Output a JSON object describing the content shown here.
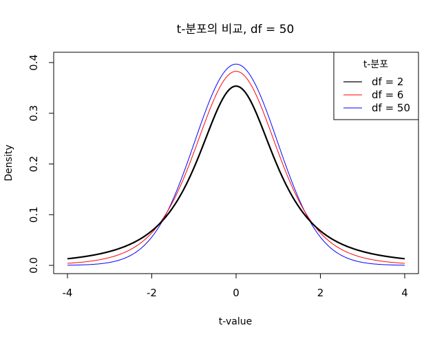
{
  "chart_data": {
    "type": "line",
    "title": "t-분포의 비교, df = 50",
    "xlabel": "t-value",
    "ylabel": "Density",
    "xlim": [
      -4,
      4
    ],
    "ylim": [
      0,
      0.4
    ],
    "x_ticks": [
      -4,
      -2,
      0,
      2,
      4
    ],
    "x_tick_labels": [
      "-4",
      "-2",
      "0",
      "2",
      "4"
    ],
    "y_ticks": [
      0.0,
      0.1,
      0.2,
      0.3,
      0.4
    ],
    "y_tick_labels": [
      "0.0",
      "0.1",
      "0.2",
      "0.3",
      "0.4"
    ],
    "grid": false,
    "legend": {
      "title": "t-분포",
      "position": "top-right"
    },
    "series": [
      {
        "name": "df = 2",
        "color": "#000000",
        "df": 2,
        "points": [
          [
            -4,
            0.0131
          ],
          [
            -3,
            0.0275
          ],
          [
            -2,
            0.068
          ],
          [
            -1.5,
            0.1087
          ],
          [
            -1,
            0.1925
          ],
          [
            -0.5,
            0.2963
          ],
          [
            0,
            0.3536
          ],
          [
            0.5,
            0.2963
          ],
          [
            1,
            0.1925
          ],
          [
            1.5,
            0.1087
          ],
          [
            2,
            0.068
          ],
          [
            3,
            0.0275
          ],
          [
            4,
            0.0131
          ]
        ]
      },
      {
        "name": "df = 6",
        "color": "#ff0000",
        "df": 6,
        "points": [
          [
            -4,
            0.0041
          ],
          [
            -3,
            0.0155
          ],
          [
            -2,
            0.064
          ],
          [
            -1.5,
            0.1201
          ],
          [
            -1,
            0.2231
          ],
          [
            -0.5,
            0.3362
          ],
          [
            0,
            0.3827
          ],
          [
            0.5,
            0.3362
          ],
          [
            1,
            0.2231
          ],
          [
            1.5,
            0.1201
          ],
          [
            2,
            0.064
          ],
          [
            3,
            0.0155
          ],
          [
            4,
            0.0041
          ]
        ]
      },
      {
        "name": "df = 50",
        "color": "#0000ff",
        "df": 50,
        "points": [
          [
            -4,
            0.0003
          ],
          [
            -3,
            0.0058
          ],
          [
            -2,
            0.0551
          ],
          [
            -1.5,
            0.1287
          ],
          [
            -1,
            0.2396
          ],
          [
            -0.5,
            0.3503
          ],
          [
            0,
            0.397
          ],
          [
            0.5,
            0.3503
          ],
          [
            1,
            0.2396
          ],
          [
            1.5,
            0.1287
          ],
          [
            2,
            0.0551
          ],
          [
            3,
            0.0058
          ],
          [
            4,
            0.0003
          ]
        ]
      }
    ]
  }
}
